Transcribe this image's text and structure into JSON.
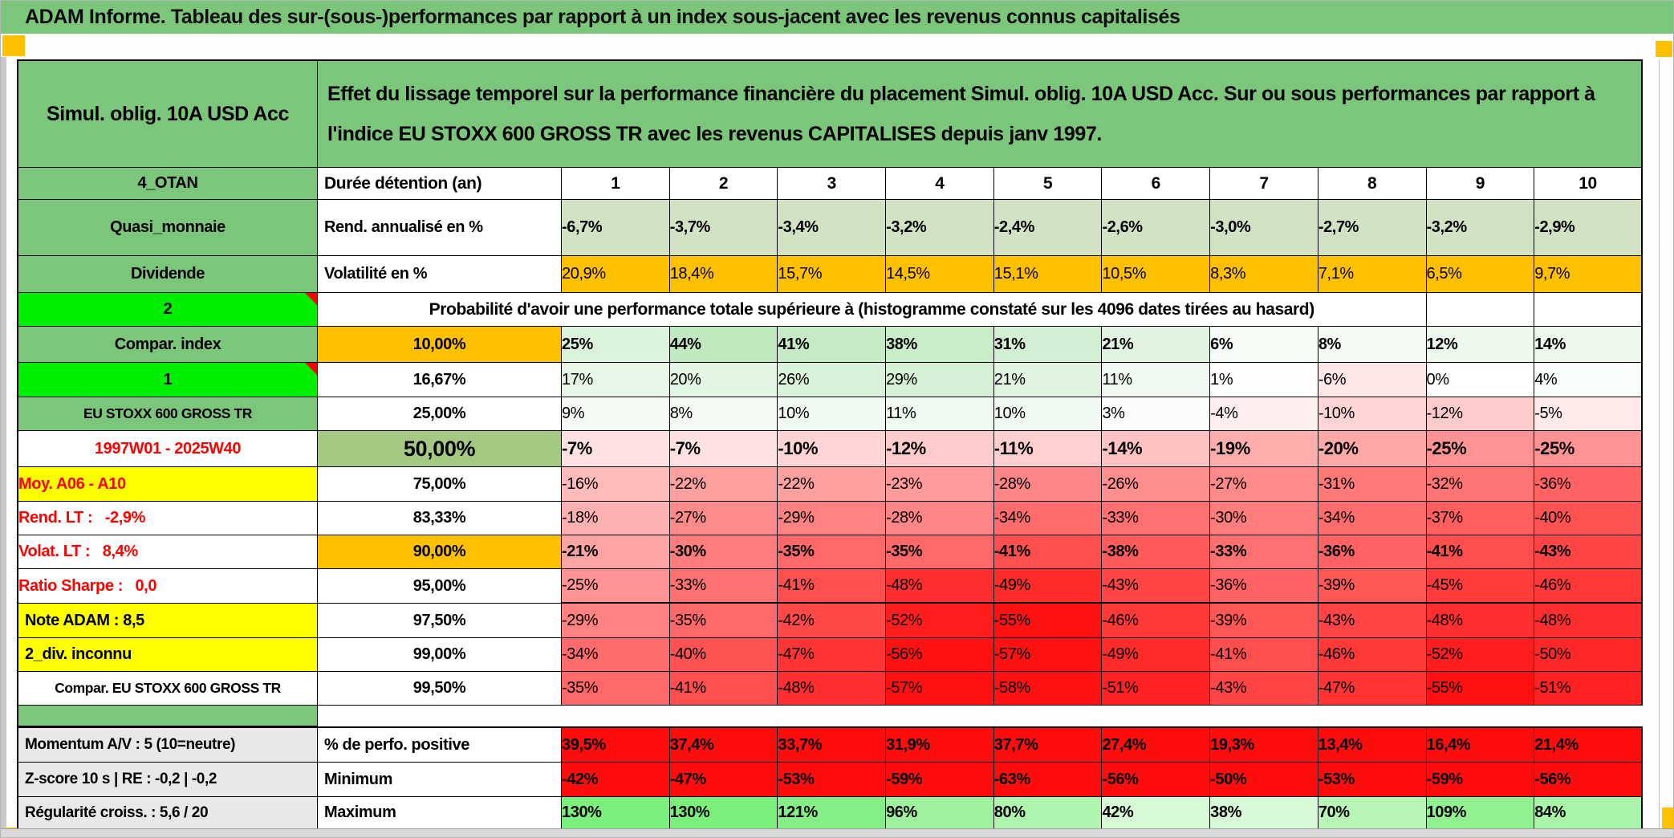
{
  "title": "ADAM Informe. Tableau des sur-(sous-)performances par rapport à un index sous-jacent avec les revenus connus capitalisés",
  "colors": {
    "header_green": "#7CC67C",
    "bright_green": "#00EE00",
    "orange": "#FFC000",
    "yellow": "#FFFF00",
    "sage": "#A5C882",
    "light_green_cells": "#D2E3C4",
    "red_cells": "#FF0D0D",
    "scale_green": "#BFE8BF",
    "scale_red": "#FF1111",
    "max_green": "#7CEE7C",
    "gray_label": "#E9E8E8",
    "red_text": "#FF0000",
    "marker_orange": "#F2A900"
  },
  "table": {
    "product": "Simul. oblig. 10A USD Acc",
    "description": "Effet du lissage temporel sur la performance financière du placement Simul. oblig. 10A USD Acc. Sur ou sous performances par rapport à l'indice EU STOXX 600 GROSS TR avec les revenus CAPITALISES depuis janv 1997.",
    "years_left": "4_OTAN",
    "years_label": "Durée détention (an)",
    "years": [
      "1",
      "2",
      "3",
      "4",
      "5",
      "6",
      "7",
      "8",
      "9",
      "10"
    ],
    "rows": [
      {
        "left": "Quasi_monnaie",
        "leftStyle": "green",
        "mid": "Rend. annualisé en %",
        "midStyle": "white-left",
        "cells": "strings",
        "cellBg": "lightgreen",
        "bold": true,
        "values": [
          "-6,7%",
          "-3,7%",
          "-3,4%",
          "-3,2%",
          "-2,4%",
          "-2,6%",
          "-3,0%",
          "-2,7%",
          "-3,2%",
          "-2,9%"
        ]
      },
      {
        "left": "Dividende",
        "leftStyle": "green",
        "mid": "Volatilité en %",
        "midStyle": "white-left",
        "cells": "strings",
        "cellBg": "orange",
        "bold": false,
        "values": [
          "20,9%",
          "18,4%",
          "15,7%",
          "14,5%",
          "15,1%",
          "10,5%",
          "8,3%",
          "7,1%",
          "6,5%",
          "9,7%"
        ]
      },
      {
        "left": "2",
        "leftStyle": "bright",
        "marker": true,
        "spanText": "Probabilité d'avoir une performance totale supérieure à (histogramme constaté sur les 4096 dates tirées au hasard)",
        "emptyTail": 2
      },
      {
        "left": "Compar. index",
        "leftStyle": "green",
        "mid": "10,00%",
        "midStyle": "orange-center",
        "cells": "scale",
        "bold": true,
        "values": [
          25,
          44,
          41,
          38,
          31,
          21,
          6,
          8,
          12,
          14
        ]
      },
      {
        "left": "1",
        "leftStyle": "bright",
        "marker": true,
        "mid": "16,67%",
        "midStyle": "white-center",
        "cells": "scale",
        "values": [
          17,
          20,
          26,
          29,
          21,
          11,
          1,
          -6,
          0,
          4
        ]
      },
      {
        "left": "EU STOXX 600 GROSS TR",
        "leftStyle": "green",
        "leftSmall": true,
        "mid": "25,00%",
        "midStyle": "white-center",
        "cells": "scale",
        "values": [
          9,
          8,
          10,
          11,
          10,
          3,
          -4,
          -10,
          -12,
          -5
        ]
      },
      {
        "left": "1997W01 - 2025W40",
        "leftStyle": "white-red",
        "mid": "50,00%",
        "midStyle": "sage-big",
        "cells": "scale",
        "bold": true,
        "big": true,
        "values": [
          -7,
          -7,
          -10,
          -12,
          -11,
          -14,
          -19,
          -20,
          -25,
          -25
        ]
      },
      {
        "left": "Moy. A06 - A10",
        "leftStyle": "yellow-red",
        "leftAlign": "right",
        "mid": "75,00%",
        "midStyle": "white-center",
        "cells": "scale",
        "values": [
          -16,
          -22,
          -22,
          -23,
          -28,
          -26,
          -27,
          -31,
          -32,
          -36
        ]
      },
      {
        "left": "Rend. LT :   -2,9%",
        "leftStyle": "white-red",
        "leftAlign": "right",
        "mid": "83,33%",
        "midStyle": "white-center",
        "cells": "scale",
        "values": [
          -18,
          -27,
          -29,
          -28,
          -34,
          -33,
          -30,
          -34,
          -37,
          -40
        ]
      },
      {
        "left": "Volat. LT :   8,4%",
        "leftStyle": "white-red",
        "leftAlign": "right",
        "mid": "90,00%",
        "midStyle": "orange-center",
        "cells": "scale",
        "bold": true,
        "values": [
          -21,
          -30,
          -35,
          -35,
          -41,
          -38,
          -33,
          -36,
          -41,
          -43
        ]
      },
      {
        "left": "Ratio Sharpe :   0,0",
        "leftStyle": "white-red",
        "leftAlign": "right",
        "mid": "95,00%",
        "midStyle": "white-center",
        "cells": "scale",
        "thickBottom": true,
        "values": [
          -25,
          -33,
          -41,
          -48,
          -49,
          -43,
          -36,
          -39,
          -45,
          -46
        ]
      },
      {
        "left": "Note ADAM : 8,5",
        "leftStyle": "yellow",
        "leftAlign": "left",
        "mid": "97,50%",
        "midStyle": "white-center",
        "cells": "scale",
        "values": [
          -29,
          -35,
          -42,
          -52,
          -55,
          -46,
          -39,
          -43,
          -48,
          -48
        ]
      },
      {
        "left": "2_div. inconnu",
        "leftStyle": "yellow",
        "leftAlign": "left",
        "mid": "99,00%",
        "midStyle": "white-center",
        "cells": "scale",
        "values": [
          -34,
          -40,
          -47,
          -56,
          -57,
          -49,
          -41,
          -46,
          -52,
          -50
        ]
      },
      {
        "left": "Compar. EU STOXX 600 GROSS TR",
        "leftStyle": "white",
        "leftSmall": true,
        "mid": "99,50%",
        "midStyle": "white-center",
        "cells": "scale",
        "values": [
          -35,
          -41,
          -48,
          -57,
          -58,
          -51,
          -43,
          -47,
          -55,
          -51
        ]
      },
      {
        "separator": true
      },
      {
        "left": "Momentum A/V : 5 (10=neutre)",
        "leftStyle": "gray",
        "leftAlign": "left",
        "mid": "% de perfo. positive",
        "midStyle": "white-left",
        "cells": "strings",
        "cellBg": "red",
        "bold": true,
        "topBorder": true,
        "values": [
          "39,5%",
          "37,4%",
          "33,7%",
          "31,9%",
          "37,7%",
          "27,4%",
          "19,3%",
          "13,4%",
          "16,4%",
          "21,4%"
        ]
      },
      {
        "left": "Z-score 10 s | RE : -0,2 | -0,2",
        "leftStyle": "gray",
        "leftAlign": "left",
        "mid": "Minimum",
        "midStyle": "white-left",
        "cells": "strings",
        "cellBg": "red",
        "bold": true,
        "values": [
          "-42%",
          "-47%",
          "-53%",
          "-59%",
          "-63%",
          "-56%",
          "-50%",
          "-53%",
          "-59%",
          "-56%"
        ]
      },
      {
        "left": "Régularité croiss. : 5,6 / 20",
        "leftStyle": "gray",
        "leftAlign": "left",
        "mid": "Maximum",
        "midStyle": "white-left",
        "cells": "maxscale",
        "bold": true,
        "values": [
          130,
          130,
          121,
          96,
          80,
          42,
          38,
          70,
          109,
          84
        ]
      }
    ]
  }
}
